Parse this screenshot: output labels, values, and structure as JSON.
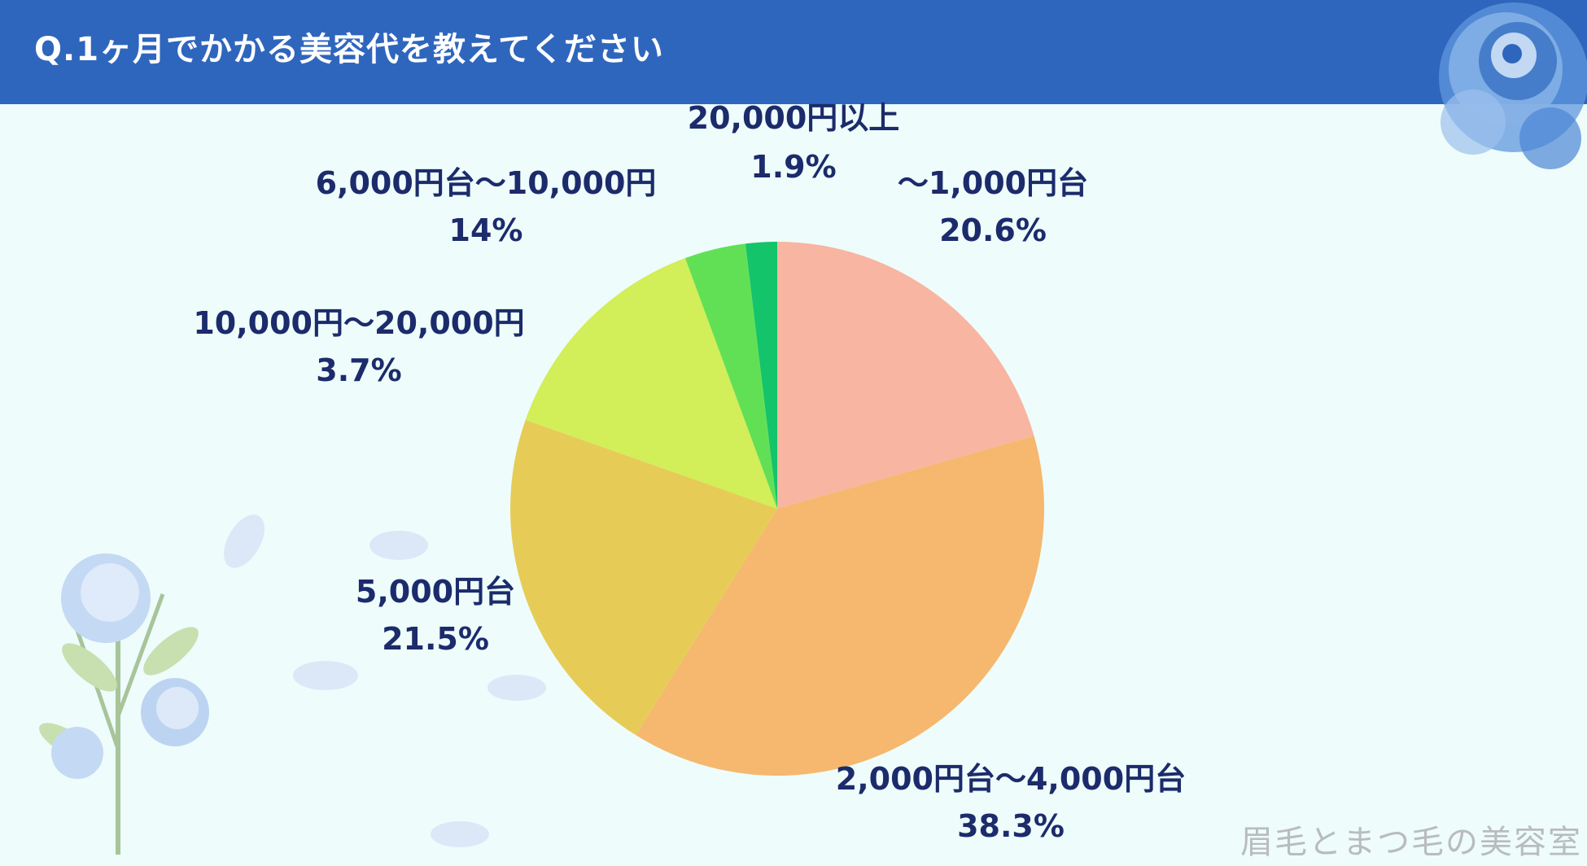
{
  "header": {
    "title": "Q.1ヶ月でかかる美容代を教えてください"
  },
  "watermark": "眉毛とまつ毛の美容室",
  "colors": {
    "header": "#2f66bd",
    "background": "#eefcfb",
    "label": "#1b2b6b"
  },
  "decorations": [
    "blue-rose-icon",
    "blue-flower-stem-icon"
  ],
  "chart_data": {
    "type": "pie",
    "title": "Q.1ヶ月でかかる美容代を教えてください",
    "slices": [
      {
        "label": "～1,000円台",
        "value": 20.6,
        "value_label": "20.6%",
        "color": "#f8b5a2"
      },
      {
        "label": "2,000円台～4,000円台",
        "value": 38.3,
        "value_label": "38.3%",
        "color": "#f5b86e"
      },
      {
        "label": "5,000円台",
        "value": 21.5,
        "value_label": "21.5%",
        "color": "#e6cc56"
      },
      {
        "label": "6,000円台～10,000円",
        "value": 14,
        "value_label": "14%",
        "color": "#d2ee58"
      },
      {
        "label": "10,000円～20,000円",
        "value": 3.7,
        "value_label": "3.7%",
        "color": "#62e055"
      },
      {
        "label": "20,000円以上",
        "value": 1.9,
        "value_label": "1.9%",
        "color": "#13c46a"
      }
    ]
  }
}
